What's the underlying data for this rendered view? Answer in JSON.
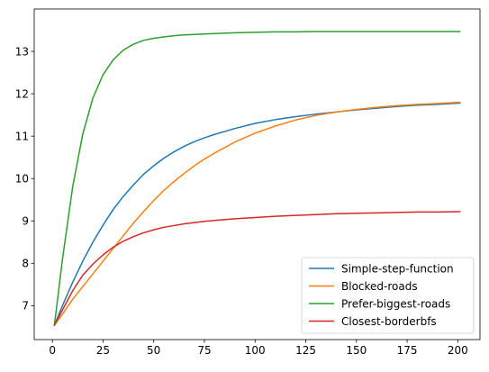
{
  "chart_data": {
    "type": "line",
    "title": "",
    "xlabel": "",
    "ylabel": "",
    "xlim": [
      -8.95,
      210.95
    ],
    "ylim": [
      6.2,
      14.0
    ],
    "xticks": [
      0,
      25,
      50,
      75,
      100,
      125,
      150,
      175,
      200
    ],
    "yticks": [
      7,
      8,
      9,
      10,
      11,
      12,
      13
    ],
    "grid": false,
    "legend_position": "lower-right",
    "x": [
      1,
      5,
      10,
      15,
      20,
      25,
      30,
      35,
      40,
      45,
      50,
      55,
      60,
      65,
      70,
      75,
      80,
      90,
      100,
      110,
      120,
      130,
      140,
      150,
      160,
      170,
      180,
      190,
      201
    ],
    "series": [
      {
        "name": "Simple-step-function",
        "color": "#1f77b4",
        "values": [
          6.54,
          7.0,
          7.55,
          8.05,
          8.5,
          8.9,
          9.27,
          9.58,
          9.85,
          10.1,
          10.3,
          10.48,
          10.63,
          10.76,
          10.87,
          10.96,
          11.04,
          11.18,
          11.3,
          11.39,
          11.46,
          11.52,
          11.57,
          11.62,
          11.66,
          11.7,
          11.73,
          11.75,
          11.78
        ]
      },
      {
        "name": "Blocked-roads",
        "color": "#ff7f0e",
        "values": [
          6.54,
          6.8,
          7.15,
          7.45,
          7.75,
          8.05,
          8.35,
          8.65,
          8.95,
          9.22,
          9.48,
          9.72,
          9.93,
          10.12,
          10.3,
          10.46,
          10.6,
          10.86,
          11.07,
          11.24,
          11.38,
          11.49,
          11.57,
          11.63,
          11.68,
          11.72,
          11.75,
          11.77,
          11.8
        ]
      },
      {
        "name": "Prefer-biggest-roads",
        "color": "#2ca02c",
        "values": [
          6.54,
          8.1,
          9.8,
          11.05,
          11.9,
          12.45,
          12.8,
          13.03,
          13.17,
          13.26,
          13.31,
          13.34,
          13.37,
          13.39,
          13.4,
          13.41,
          13.42,
          13.44,
          13.45,
          13.46,
          13.46,
          13.47,
          13.47,
          13.47,
          13.47,
          13.47,
          13.47,
          13.47,
          13.47
        ]
      },
      {
        "name": "Closest-borderbfs",
        "color": "#d62728",
        "values": [
          6.54,
          6.9,
          7.35,
          7.72,
          7.98,
          8.2,
          8.38,
          8.52,
          8.63,
          8.72,
          8.79,
          8.85,
          8.89,
          8.93,
          8.96,
          8.99,
          9.01,
          9.05,
          9.08,
          9.11,
          9.13,
          9.15,
          9.17,
          9.18,
          9.19,
          9.2,
          9.21,
          9.21,
          9.22
        ]
      }
    ]
  }
}
